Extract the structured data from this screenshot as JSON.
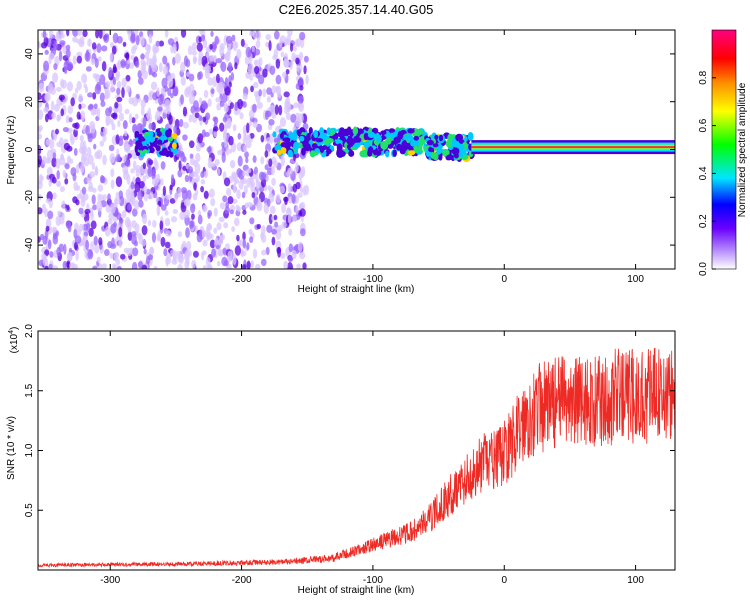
{
  "title": "C2E6.2025.357.14.40.G05",
  "chart_data": [
    {
      "type": "heatmap",
      "name": "spectrogram",
      "xlabel": "Height of straight line (km)",
      "ylabel": "Frequency (Hz)",
      "xlim": [
        -355,
        130
      ],
      "ylim": [
        -50,
        50
      ],
      "xticks": [
        -300,
        -200,
        -100,
        0,
        100
      ],
      "yticks": [
        -40,
        -20,
        0,
        20,
        40
      ],
      "features": [
        {
          "label": "broadband scatter",
          "x_range": [
            -355,
            -150
          ],
          "freq_range": [
            -50,
            50
          ],
          "amplitude": 0.1
        },
        {
          "label": "band 1",
          "x_range": [
            -280,
            -250
          ],
          "freq_center": 3,
          "amplitude": 0.35
        },
        {
          "label": "band 2",
          "x_range": [
            -175,
            -60
          ],
          "freq_center": 3,
          "amplitude": 0.4
        },
        {
          "label": "band 3",
          "x_range": [
            -60,
            -25
          ],
          "freq_center": 1,
          "amplitude": 0.5
        },
        {
          "label": "carrier line",
          "x_range": [
            -25,
            130
          ],
          "freq_center": 1,
          "amplitude": 0.95
        }
      ],
      "colorbar": {
        "label": "Normalized spectral amplitude",
        "range": [
          0.0,
          1.0
        ],
        "ticks": [
          "0.0",
          "0.2",
          "0.4",
          "0.6",
          "0.8"
        ],
        "tick_values": [
          0.0,
          0.2,
          0.4,
          0.6,
          0.8
        ],
        "colors": [
          "#ffffff",
          "#b388ff",
          "#6a00ff",
          "#0000ff",
          "#00e5ff",
          "#00ff00",
          "#ffff00",
          "#ff8c00",
          "#ff0000",
          "#ff0080"
        ]
      }
    },
    {
      "type": "line",
      "name": "snr",
      "xlabel": "Height of straight line (km)",
      "ylabel": "SNR (10 * v/v)",
      "y_multiplier_label": "(x10",
      "y_multiplier_exp": "4",
      "y_multiplier_close": ")",
      "xlim": [
        -355,
        130
      ],
      "ylim": [
        0,
        20000
      ],
      "xticks": [
        -300,
        -200,
        -100,
        0,
        100
      ],
      "yticks": [
        5000,
        10000,
        15000,
        20000
      ],
      "ytick_labels": [
        "0.5",
        "1.0",
        "1.5",
        "2.0"
      ],
      "color": "#ee2a24",
      "series": [
        {
          "x": -355,
          "y": 400
        },
        {
          "x": -300,
          "y": 450
        },
        {
          "x": -250,
          "y": 500
        },
        {
          "x": -200,
          "y": 600
        },
        {
          "x": -160,
          "y": 700
        },
        {
          "x": -130,
          "y": 1000
        },
        {
          "x": -110,
          "y": 1700
        },
        {
          "x": -90,
          "y": 2500
        },
        {
          "x": -70,
          "y": 3200
        },
        {
          "x": -55,
          "y": 4500
        },
        {
          "x": -45,
          "y": 5800
        },
        {
          "x": -35,
          "y": 7000
        },
        {
          "x": -25,
          "y": 8000
        },
        {
          "x": -15,
          "y": 9000
        },
        {
          "x": -5,
          "y": 9200
        },
        {
          "x": 5,
          "y": 10500
        },
        {
          "x": 15,
          "y": 12500
        },
        {
          "x": 25,
          "y": 13500
        },
        {
          "x": 40,
          "y": 14000
        },
        {
          "x": 55,
          "y": 14200
        },
        {
          "x": 70,
          "y": 14000
        },
        {
          "x": 85,
          "y": 14500
        },
        {
          "x": 100,
          "y": 14500
        },
        {
          "x": 115,
          "y": 14800
        },
        {
          "x": 130,
          "y": 14500
        }
      ]
    }
  ]
}
